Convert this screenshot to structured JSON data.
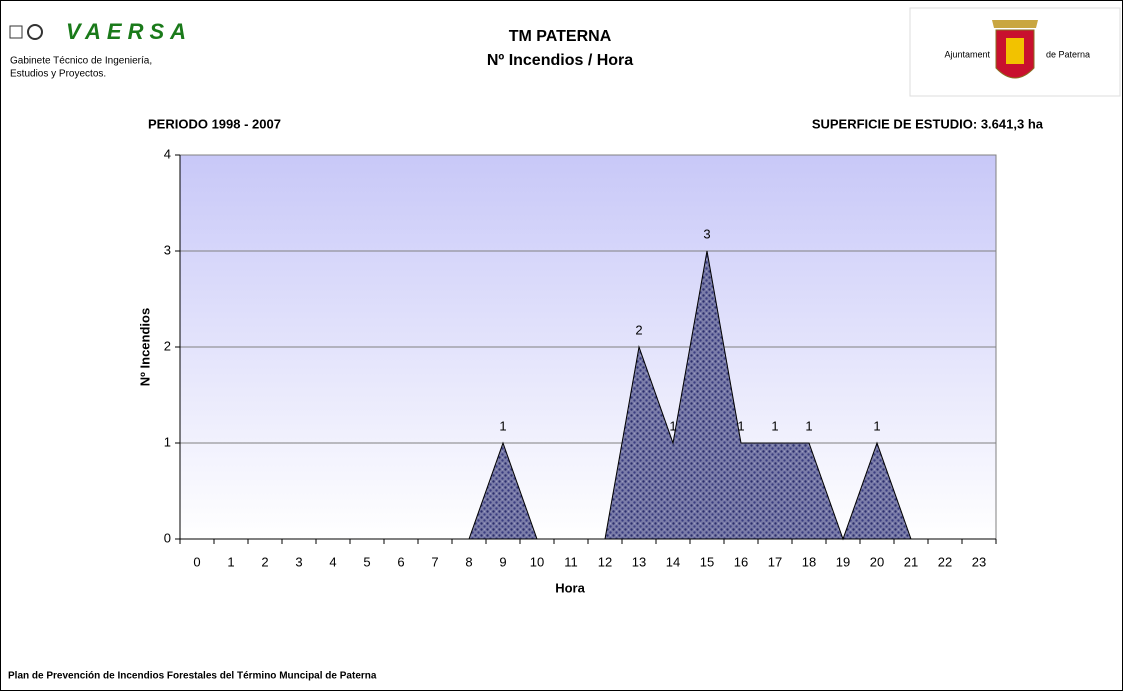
{
  "header": {
    "brand": "VAERSA",
    "company": [
      "Gabinete Técnico de Ingeniería,",
      "Estudios y Proyectos."
    ],
    "municipality": [
      "Ajuntament",
      "de Paterna"
    ]
  },
  "periodo": "PERIODO 1998 - 2007",
  "superficie": "SUPERFICIE DE ESTUDIO:  3.641,3 ha",
  "footer": "Plan de Prevención de Incendios Forestales del Término Muncipal de Paterna",
  "chart_data": {
    "type": "area",
    "title": "TM PATERNA",
    "subtitle": "Nº Incendios / Hora",
    "x_label": "Hora",
    "y_label": "Nº Incendios",
    "categories": [
      "0",
      "1",
      "2",
      "3",
      "4",
      "5",
      "6",
      "7",
      "8",
      "9",
      "10",
      "11",
      "12",
      "13",
      "14",
      "15",
      "16",
      "17",
      "18",
      "19",
      "20",
      "21",
      "22",
      "23"
    ],
    "values": [
      0,
      0,
      0,
      0,
      0,
      0,
      0,
      0,
      0,
      1,
      0,
      0,
      0,
      2,
      1,
      3,
      1,
      1,
      1,
      0,
      1,
      0,
      0,
      0
    ],
    "color": "#5c5f8a",
    "ylim": [
      0,
      4
    ],
    "yticks": [
      0,
      1,
      2,
      3,
      4
    ],
    "grid": true
  }
}
